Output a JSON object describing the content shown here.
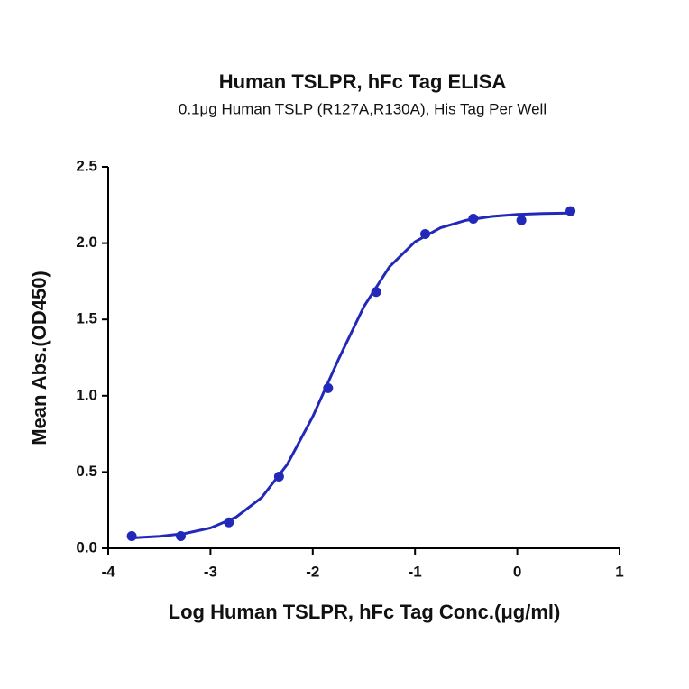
{
  "chart_data": {
    "type": "scatter",
    "title": "Human TSLPR, hFc Tag ELISA",
    "subtitle": "0.1μg Human TSLP (R127A,R130A), His Tag Per Well",
    "x_label": "Log Human TSLPR, hFc Tag Conc.(μg/ml)",
    "y_label": "Mean Abs.(OD450)",
    "series": [
      {
        "mode": "markers",
        "color": "#2228b8",
        "x": [
          -3.77,
          -3.29,
          -2.82,
          -2.33,
          -1.85,
          -1.38,
          -0.9,
          -0.43,
          0.04,
          0.52
        ],
        "values": [
          0.08,
          0.08,
          0.17,
          0.47,
          1.05,
          1.68,
          2.06,
          2.16,
          2.15,
          2.21
        ]
      },
      {
        "mode": "line",
        "color": "#2228b8",
        "x": [
          -3.77,
          -3.5,
          -3.25,
          -3.0,
          -2.75,
          -2.5,
          -2.25,
          -2.0,
          -1.75,
          -1.5,
          -1.25,
          -1.0,
          -0.75,
          -0.5,
          -0.25,
          0,
          0.25,
          0.52
        ],
        "values": [
          0.068,
          0.078,
          0.097,
          0.133,
          0.204,
          0.332,
          0.549,
          0.863,
          1.236,
          1.584,
          1.845,
          2.009,
          2.101,
          2.15,
          2.175,
          2.188,
          2.194,
          2.197
        ]
      }
    ],
    "xlim": [
      -4,
      1
    ],
    "xticks": [
      -4,
      -3,
      -2,
      -1,
      0,
      1
    ],
    "ylim": [
      0,
      2.5
    ],
    "yticks": [
      {
        "value": 0,
        "label": "0.0"
      },
      0.5,
      {
        "value": 1,
        "label": "1.0"
      },
      1.5,
      {
        "value": 2,
        "label": "2.0"
      },
      2.5
    ]
  }
}
